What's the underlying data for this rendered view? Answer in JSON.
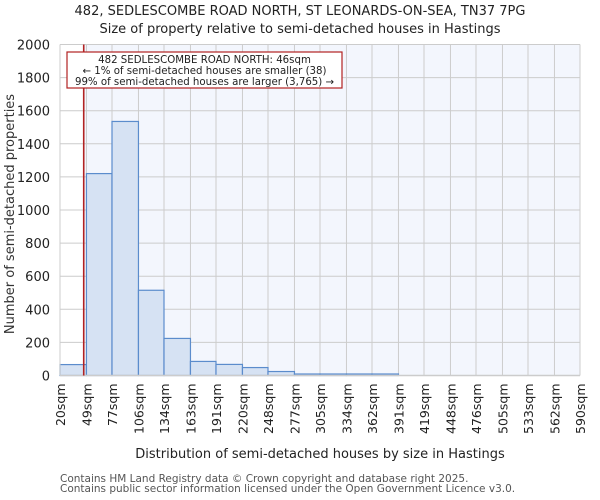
{
  "title_line1": "482, SEDLESCOMBE ROAD NORTH, ST LEONARDS-ON-SEA, TN37 7PG",
  "title_line2": "Size of property relative to semi-detached houses in Hastings",
  "annotation": {
    "line1": "482 SEDLESCOMBE ROAD NORTH: 46sqm",
    "line2": "← 1% of semi-detached houses are smaller (38)",
    "line3": "99% of semi-detached houses are larger (3,765) →"
  },
  "footer": {
    "line1": "Contains HM Land Registry data © Crown copyright and database right 2025.",
    "line2": "Contains public sector information licensed under the Open Government Licence v3.0."
  },
  "colors": {
    "bar_fill": "#d6e2f3",
    "bar_edge": "#5b8ccc",
    "highlight_line": "#b22222",
    "plot_bg_right": "#f3f6fd",
    "grid": "#cccccc"
  },
  "chart_data": {
    "type": "bar",
    "title": "482, SEDLESCOMBE ROAD NORTH, ST LEONARDS-ON-SEA, TN37 7PG — Size of property relative to semi-detached houses in Hastings",
    "xlabel": "Distribution of semi-detached houses by size in Hastings",
    "ylabel": "Number of semi-detached properties",
    "ylim": [
      0,
      2000
    ],
    "yticks": [
      0,
      200,
      400,
      600,
      800,
      1000,
      1200,
      1400,
      1600,
      1800,
      2000
    ],
    "bin_edges": [
      20,
      49,
      77,
      106,
      134,
      163,
      191,
      220,
      248,
      277,
      305,
      334,
      362,
      391,
      419,
      448,
      476,
      505,
      533,
      562,
      590
    ],
    "categories": [
      "20sqm",
      "49sqm",
      "77sqm",
      "106sqm",
      "134sqm",
      "163sqm",
      "191sqm",
      "220sqm",
      "248sqm",
      "277sqm",
      "305sqm",
      "334sqm",
      "362sqm",
      "391sqm",
      "419sqm",
      "448sqm",
      "476sqm",
      "505sqm",
      "533sqm",
      "562sqm",
      "590sqm"
    ],
    "values": [
      66,
      1220,
      1535,
      515,
      224,
      85,
      67,
      48,
      24,
      7,
      5,
      4,
      3,
      0,
      0,
      0,
      0,
      0,
      0,
      0
    ],
    "marker": {
      "value": 46,
      "label": "482 SEDLESCOMBE ROAD NORTH: 46sqm"
    },
    "grid": true,
    "legend": null
  }
}
